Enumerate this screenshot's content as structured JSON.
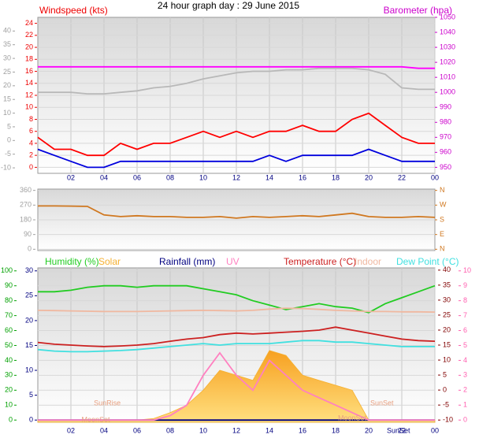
{
  "title": "24 hour graph day : 29 June 2015",
  "chart_data": [
    {
      "type": "line",
      "ylabel": "Windspeed (kts)",
      "y2label": "Barometer (hpa)",
      "x": [
        0,
        1,
        2,
        3,
        4,
        5,
        6,
        7,
        8,
        9,
        10,
        11,
        12,
        13,
        14,
        15,
        16,
        17,
        18,
        19,
        20,
        21,
        22,
        23,
        24
      ],
      "xlim": [
        0,
        24
      ],
      "xticks": [
        {
          "value": 2,
          "label": "02"
        },
        {
          "value": 4,
          "label": "04"
        },
        {
          "value": 6,
          "label": "06"
        },
        {
          "value": 8,
          "label": "08"
        },
        10,
        12,
        14,
        16,
        18,
        20,
        22,
        {
          "value": 24,
          "label": "00"
        }
      ],
      "ylim": [
        -1,
        25
      ],
      "yticks": [
        0,
        2,
        4,
        6,
        8,
        10,
        12,
        14,
        16,
        18,
        20,
        22,
        24
      ],
      "ycolor": "#ee0000",
      "y2lim": [
        946,
        1050
      ],
      "y2ticks": [
        950,
        960,
        970,
        980,
        990,
        1000,
        1010,
        1020,
        1030,
        1040,
        1050
      ],
      "y2color": "#cc00cc",
      "y3lim": [
        -12,
        45
      ],
      "y3ticks": [
        -10,
        -5,
        0,
        5,
        10,
        15,
        20,
        25,
        30,
        35,
        40
      ],
      "y3color": "#a0a0a0",
      "grid": true,
      "series": [
        {
          "color": "#b8b8b8",
          "axis": "y2",
          "values": [
            1000,
            1000,
            1000,
            999,
            999,
            1000,
            1001,
            1003,
            1004,
            1006,
            1009,
            1011,
            1013,
            1014,
            1014,
            1015,
            1015,
            1016,
            1016,
            1016,
            1015,
            1012,
            1003,
            1002,
            1002
          ]
        },
        {
          "color": "#ff00ff",
          "axis": "y2",
          "values": [
            1017,
            1017,
            1017,
            1017,
            1017,
            1017,
            1017,
            1017,
            1017,
            1017,
            1017,
            1017,
            1017,
            1017,
            1017,
            1017,
            1017,
            1017,
            1017,
            1017,
            1017,
            1017,
            1017,
            1016,
            1016
          ]
        },
        {
          "color": "#ff0000",
          "values": [
            5,
            3,
            3,
            2,
            2,
            4,
            3,
            4,
            4,
            5,
            6,
            5,
            6,
            5,
            6,
            6,
            7,
            6,
            6,
            8,
            9,
            7,
            5,
            4,
            4
          ]
        },
        {
          "color": "#0000dd",
          "values": [
            3,
            2,
            1,
            0,
            0,
            1,
            1,
            1,
            1,
            1,
            1,
            1,
            1,
            1,
            2,
            1,
            2,
            2,
            2,
            2,
            3,
            2,
            1,
            1,
            1
          ]
        }
      ]
    },
    {
      "type": "line",
      "x": [
        0,
        1,
        2,
        3,
        4,
        5,
        6,
        7,
        8,
        9,
        10,
        11,
        12,
        13,
        14,
        15,
        16,
        17,
        18,
        19,
        20,
        21,
        22,
        23,
        24
      ],
      "xlim": [
        0,
        24
      ],
      "ylim": [
        -8,
        368
      ],
      "yticks": [
        0,
        90,
        180,
        270,
        360
      ],
      "ycolor": "#a0a0a0",
      "y2lim": [
        -8,
        368
      ],
      "y2ticks": [
        {
          "value": 0,
          "label": "N"
        },
        {
          "value": 90,
          "label": "E"
        },
        {
          "value": 180,
          "label": "S"
        },
        {
          "value": 270,
          "label": "W"
        },
        {
          "value": 360,
          "label": "N"
        }
      ],
      "y2color": "#d07820",
      "grid": true,
      "series": [
        {
          "color": "#d07820",
          "values": [
            265,
            265,
            264,
            262,
            210,
            200,
            205,
            200,
            200,
            195,
            195,
            200,
            190,
            200,
            195,
            200,
            205,
            200,
            210,
            220,
            200,
            195,
            195,
            200,
            195
          ]
        }
      ]
    },
    {
      "type": "line",
      "x": [
        0,
        1,
        2,
        3,
        4,
        5,
        6,
        7,
        8,
        9,
        10,
        11,
        12,
        13,
        14,
        15,
        16,
        17,
        18,
        19,
        20,
        21,
        22,
        23,
        24
      ],
      "xlim": [
        0,
        24
      ],
      "xticks": [
        {
          "value": 2,
          "label": "02"
        },
        {
          "value": 4,
          "label": "04"
        },
        {
          "value": 6,
          "label": "06"
        },
        {
          "value": 8,
          "label": "08"
        },
        10,
        12,
        14,
        16,
        18,
        20,
        22,
        {
          "value": 24,
          "label": "00"
        }
      ],
      "ylim": [
        -1.5,
        102
      ],
      "yticks": [
        0,
        10,
        20,
        30,
        40,
        50,
        60,
        70,
        80,
        90,
        100
      ],
      "ycolor": "#00a000",
      "y2lim": [
        -10.75,
        40.75
      ],
      "y2ticks": [
        -10,
        -5,
        0,
        5,
        10,
        15,
        20,
        25,
        30,
        35,
        40
      ],
      "y2color": "#800000",
      "y3lim": [
        -0.45,
        30.6
      ],
      "y3ticks": [
        0,
        5,
        10,
        15,
        20,
        25,
        30
      ],
      "y3color": "#000080",
      "y4lim": [
        -0.15,
        10.2
      ],
      "y4ticks": [
        0,
        1,
        2,
        3,
        4,
        5,
        6,
        7,
        8,
        9,
        10
      ],
      "y4color": "#ff60b0",
      "grid": true,
      "series": [
        {
          "name": "Humidity (%)",
          "color": "#22cc22",
          "values": [
            86,
            86,
            87,
            89,
            90,
            90,
            89,
            90,
            90,
            90,
            88,
            86,
            84,
            80,
            77,
            74,
            76,
            78,
            76,
            75,
            72,
            78,
            82,
            86,
            90
          ]
        },
        {
          "name": "Solar",
          "color": "#f5b030",
          "axis": "y3",
          "fill": true,
          "values": [
            0,
            0,
            0,
            0,
            0,
            0,
            0,
            0.3,
            1.5,
            3,
            6,
            10,
            9,
            8,
            14,
            13,
            9,
            8,
            7,
            6,
            0,
            0,
            0,
            0,
            0
          ]
        },
        {
          "name": "Rainfall (mm)",
          "color": "#000080",
          "axis": "y3",
          "values": [
            0,
            0,
            0,
            0,
            0,
            0,
            0,
            0,
            0,
            0,
            0,
            0,
            0,
            0,
            0,
            0,
            0,
            0,
            0,
            0,
            0,
            0,
            0,
            0,
            0
          ]
        },
        {
          "name": "UV",
          "color": "#ff80c0",
          "axis": "y4",
          "values": [
            0,
            0,
            0,
            0,
            0,
            0,
            0,
            0,
            0.3,
            1,
            3,
            4.5,
            3,
            2,
            4,
            3,
            2,
            1.5,
            1,
            0.5,
            0,
            0,
            0,
            0,
            0
          ]
        },
        {
          "name": "Temperature (°C)",
          "color": "#cc2020",
          "axis": "y2",
          "values": [
            15.9,
            15.3,
            15,
            14.7,
            14.5,
            14.7,
            15,
            15.5,
            16.3,
            17,
            17.5,
            18.5,
            19,
            18.7,
            19,
            19.3,
            19.6,
            20,
            21,
            20,
            19,
            18,
            17,
            16.5,
            16.3
          ]
        },
        {
          "name": "Indoor",
          "color": "#f0b8a0",
          "axis": "y2",
          "values": [
            26.6,
            26.5,
            26.4,
            26.3,
            26.2,
            26.2,
            26.2,
            26.3,
            26.4,
            26.5,
            26.6,
            26.5,
            26.4,
            26.6,
            27,
            27.3,
            27.2,
            26.9,
            26.6,
            26.4,
            26.2,
            26.2,
            26.1,
            26.1,
            26
          ]
        },
        {
          "name": "Dew Point (°C)",
          "color": "#40e0e0",
          "axis": "y2",
          "values": [
            13.5,
            13,
            12.8,
            12.8,
            13,
            13.2,
            13.5,
            14,
            14.5,
            15,
            15.5,
            15,
            15.5,
            15.5,
            15.5,
            16,
            16.5,
            16.5,
            16,
            16,
            15.5,
            15,
            14.5,
            14.5,
            14.5
          ]
        }
      ],
      "annotations": [
        {
          "text": "SunRise",
          "x": 4.2
        },
        {
          "text": "SunSet",
          "x": 20.8
        },
        {
          "text": "MoonSet",
          "x": 3.5
        },
        {
          "text": "MoonSet",
          "x": 19
        },
        {
          "text": "SunSet",
          "x": 21.8
        }
      ]
    }
  ]
}
